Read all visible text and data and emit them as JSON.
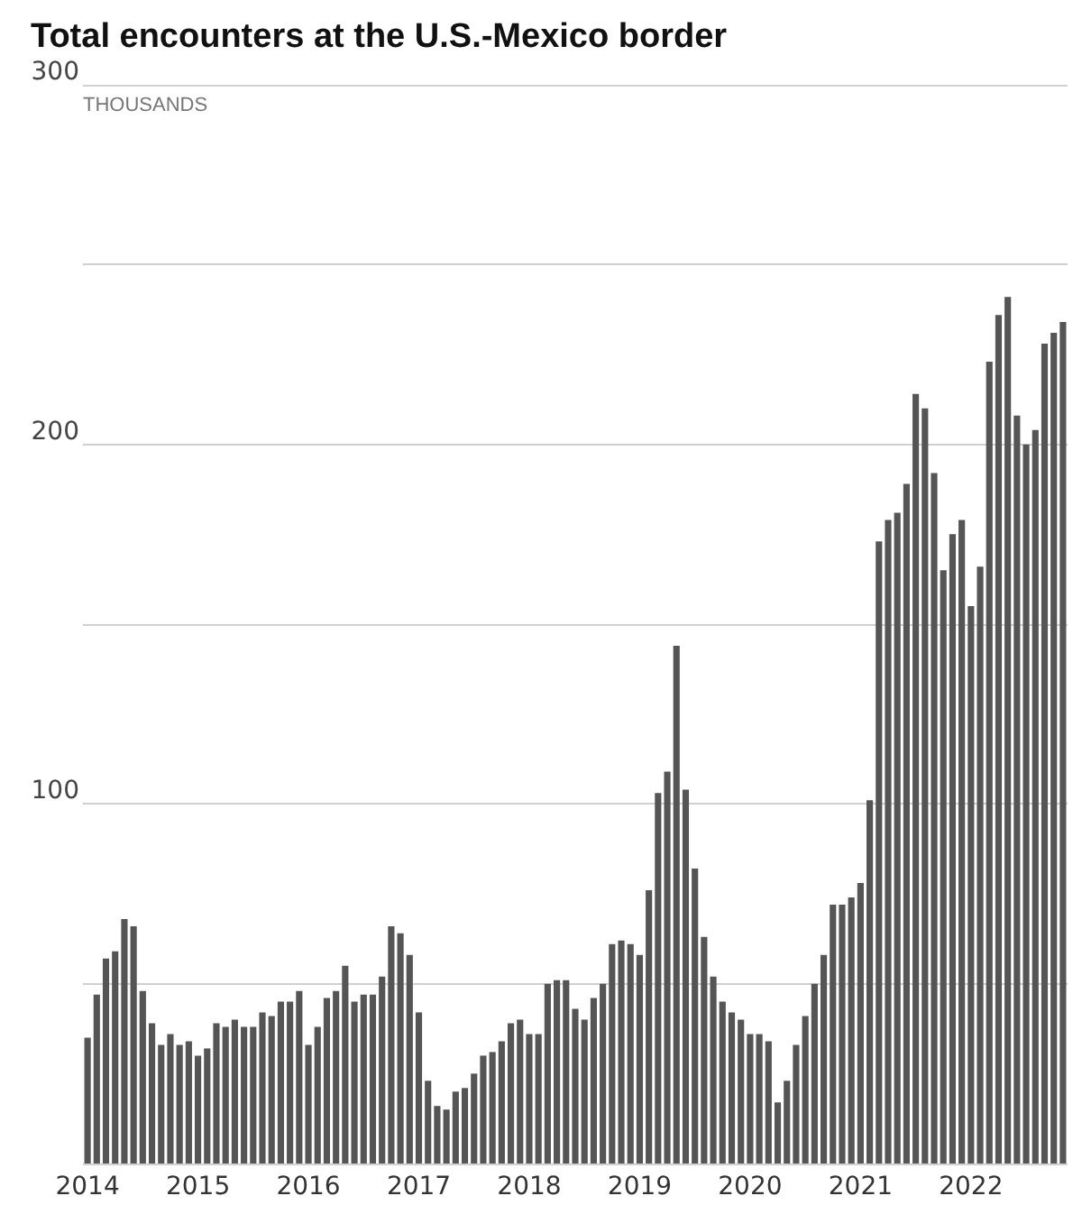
{
  "chart_data": {
    "type": "bar",
    "title": "Total encounters at the U.S.-Mexico border",
    "ylabel": "THOUSANDS",
    "categories": [
      "2014",
      null,
      null,
      null,
      null,
      null,
      null,
      null,
      null,
      null,
      null,
      null,
      "2015",
      null,
      null,
      null,
      null,
      null,
      null,
      null,
      null,
      null,
      null,
      null,
      "2016",
      null,
      null,
      null,
      null,
      null,
      null,
      null,
      null,
      null,
      null,
      null,
      "2017",
      null,
      null,
      null,
      null,
      null,
      null,
      null,
      null,
      null,
      null,
      null,
      "2018",
      null,
      null,
      null,
      null,
      null,
      null,
      null,
      null,
      null,
      null,
      null,
      "2019",
      null,
      null,
      null,
      null,
      null,
      null,
      null,
      null,
      null,
      null,
      null,
      "2020",
      null,
      null,
      null,
      null,
      null,
      null,
      null,
      null,
      null,
      null,
      null,
      "2021",
      null,
      null,
      null,
      null,
      null,
      null,
      null,
      null,
      null,
      null,
      null,
      "2022",
      null,
      null,
      null,
      null,
      null,
      null,
      null,
      null,
      null,
      null
    ],
    "values": [
      35,
      47,
      57,
      59,
      68,
      66,
      48,
      39,
      33,
      36,
      33,
      34,
      30,
      32,
      39,
      38,
      40,
      38,
      38,
      42,
      41,
      45,
      45,
      48,
      33,
      38,
      46,
      48,
      55,
      45,
      47,
      47,
      52,
      66,
      64,
      58,
      42,
      23,
      16,
      15,
      20,
      21,
      25,
      30,
      31,
      34,
      39,
      40,
      36,
      36,
      50,
      51,
      51,
      43,
      40,
      46,
      50,
      61,
      62,
      61,
      58,
      76,
      103,
      109,
      144,
      104,
      82,
      63,
      52,
      45,
      42,
      40,
      36,
      36,
      34,
      17,
      23,
      33,
      41,
      50,
      58,
      72,
      72,
      74,
      78,
      101,
      173,
      179,
      181,
      189,
      214,
      210,
      192,
      165,
      175,
      179,
      155,
      166,
      223,
      236,
      241,
      208,
      200,
      204,
      228,
      231,
      234
    ],
    "color": "#555555",
    "ylim": [
      0,
      300
    ],
    "yticks": [
      {
        "value": 0,
        "label": null
      },
      {
        "value": 50,
        "label": null
      },
      100,
      {
        "value": 150,
        "label": null
      },
      200,
      {
        "value": 250,
        "label": null
      },
      300
    ],
    "grid": "y"
  }
}
